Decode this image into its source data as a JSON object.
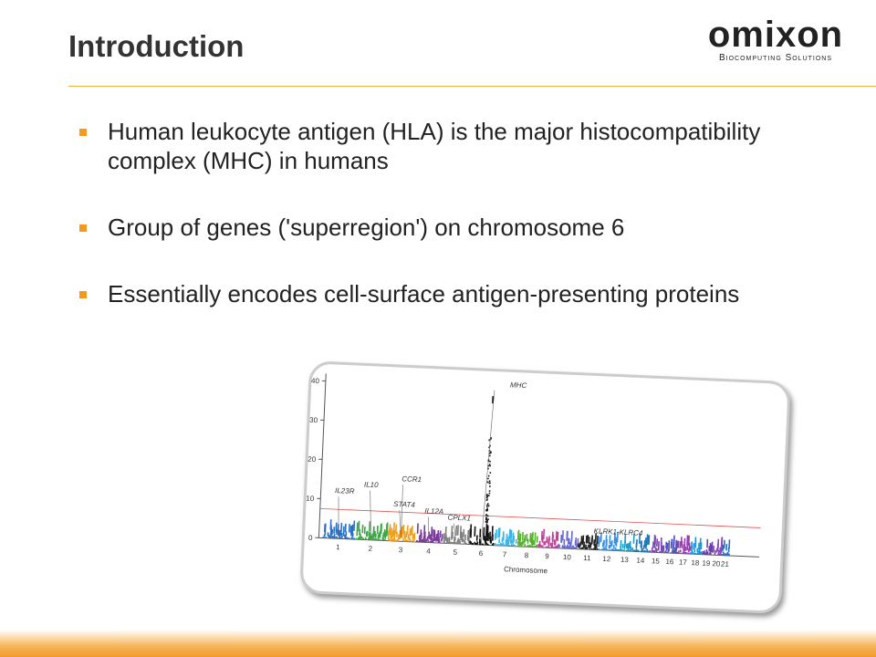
{
  "header": {
    "title": "Introduction"
  },
  "logo": {
    "name": "omixon",
    "tagline": "Biocomputing Solutions"
  },
  "bullets": [
    "Human leukocyte antigen (HLA) is the major histocompatibility complex (MHC) in humans",
    "Group of genes ('superregion') on chromosome 6",
    "Essentially encodes cell-surface antigen-presenting proteins"
  ],
  "figure": {
    "yticks": [
      0,
      10,
      20,
      30,
      40
    ],
    "chromosomes": [
      "1",
      "2",
      "3",
      "4",
      "5",
      "6",
      "7",
      "8",
      "9",
      "10",
      "11",
      "12",
      "13",
      "14",
      "15",
      "16",
      "17",
      "18",
      "19",
      "20",
      "21"
    ],
    "x_label": "Chromosome",
    "genes": [
      "IL23R",
      "IL10",
      "STAT4",
      "CCR1",
      "IL12A",
      "CPLX1",
      "MHC",
      "KLRK1-KLRC4"
    ]
  }
}
